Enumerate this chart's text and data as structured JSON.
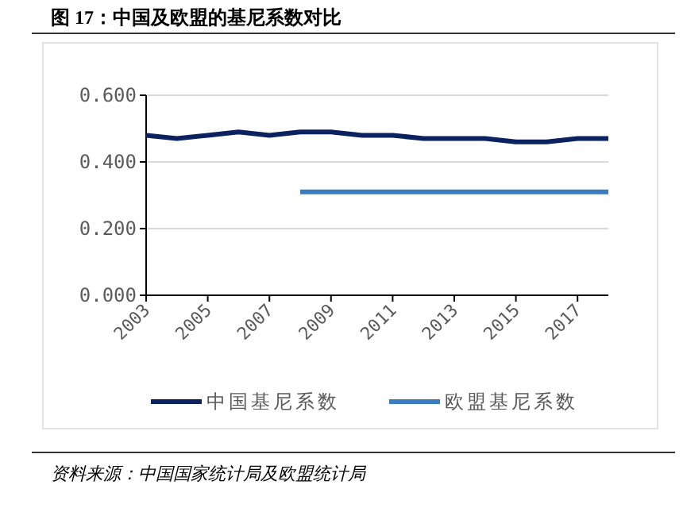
{
  "chart_data": {
    "type": "line",
    "title": "图 17：中国及欧盟的基尼系数对比",
    "x": [
      2003,
      2004,
      2005,
      2006,
      2007,
      2008,
      2009,
      2010,
      2011,
      2012,
      2013,
      2014,
      2015,
      2016,
      2017,
      2018
    ],
    "series": [
      {
        "name": "中国基尼系数",
        "color": "#0b2160",
        "values": [
          0.48,
          0.47,
          0.48,
          0.49,
          0.48,
          0.49,
          0.49,
          0.48,
          0.48,
          0.47,
          0.47,
          0.47,
          0.46,
          0.46,
          0.47,
          0.47
        ]
      },
      {
        "name": "欧盟基尼系数",
        "color": "#3b7bbf",
        "values": [
          null,
          null,
          null,
          null,
          null,
          0.31,
          0.31,
          0.31,
          0.31,
          0.31,
          0.31,
          0.31,
          0.31,
          0.31,
          0.31,
          0.31
        ]
      }
    ],
    "xlim": [
      2003,
      2018
    ],
    "xticks": [
      2003,
      2005,
      2007,
      2009,
      2011,
      2013,
      2015,
      2017
    ],
    "ylim": [
      0,
      0.6
    ],
    "yticks": [
      {
        "value": 0,
        "label": "0.000"
      },
      {
        "value": 0.2,
        "label": "0.200"
      },
      {
        "value": 0.4,
        "label": "0.400"
      },
      {
        "value": 0.6,
        "label": "0.600"
      }
    ],
    "grid": "y",
    "legend": "bottom",
    "marker": "none",
    "line_style": "solid",
    "annotations": [
      "资料来源：中国国家统计局及欧盟统计局"
    ]
  }
}
